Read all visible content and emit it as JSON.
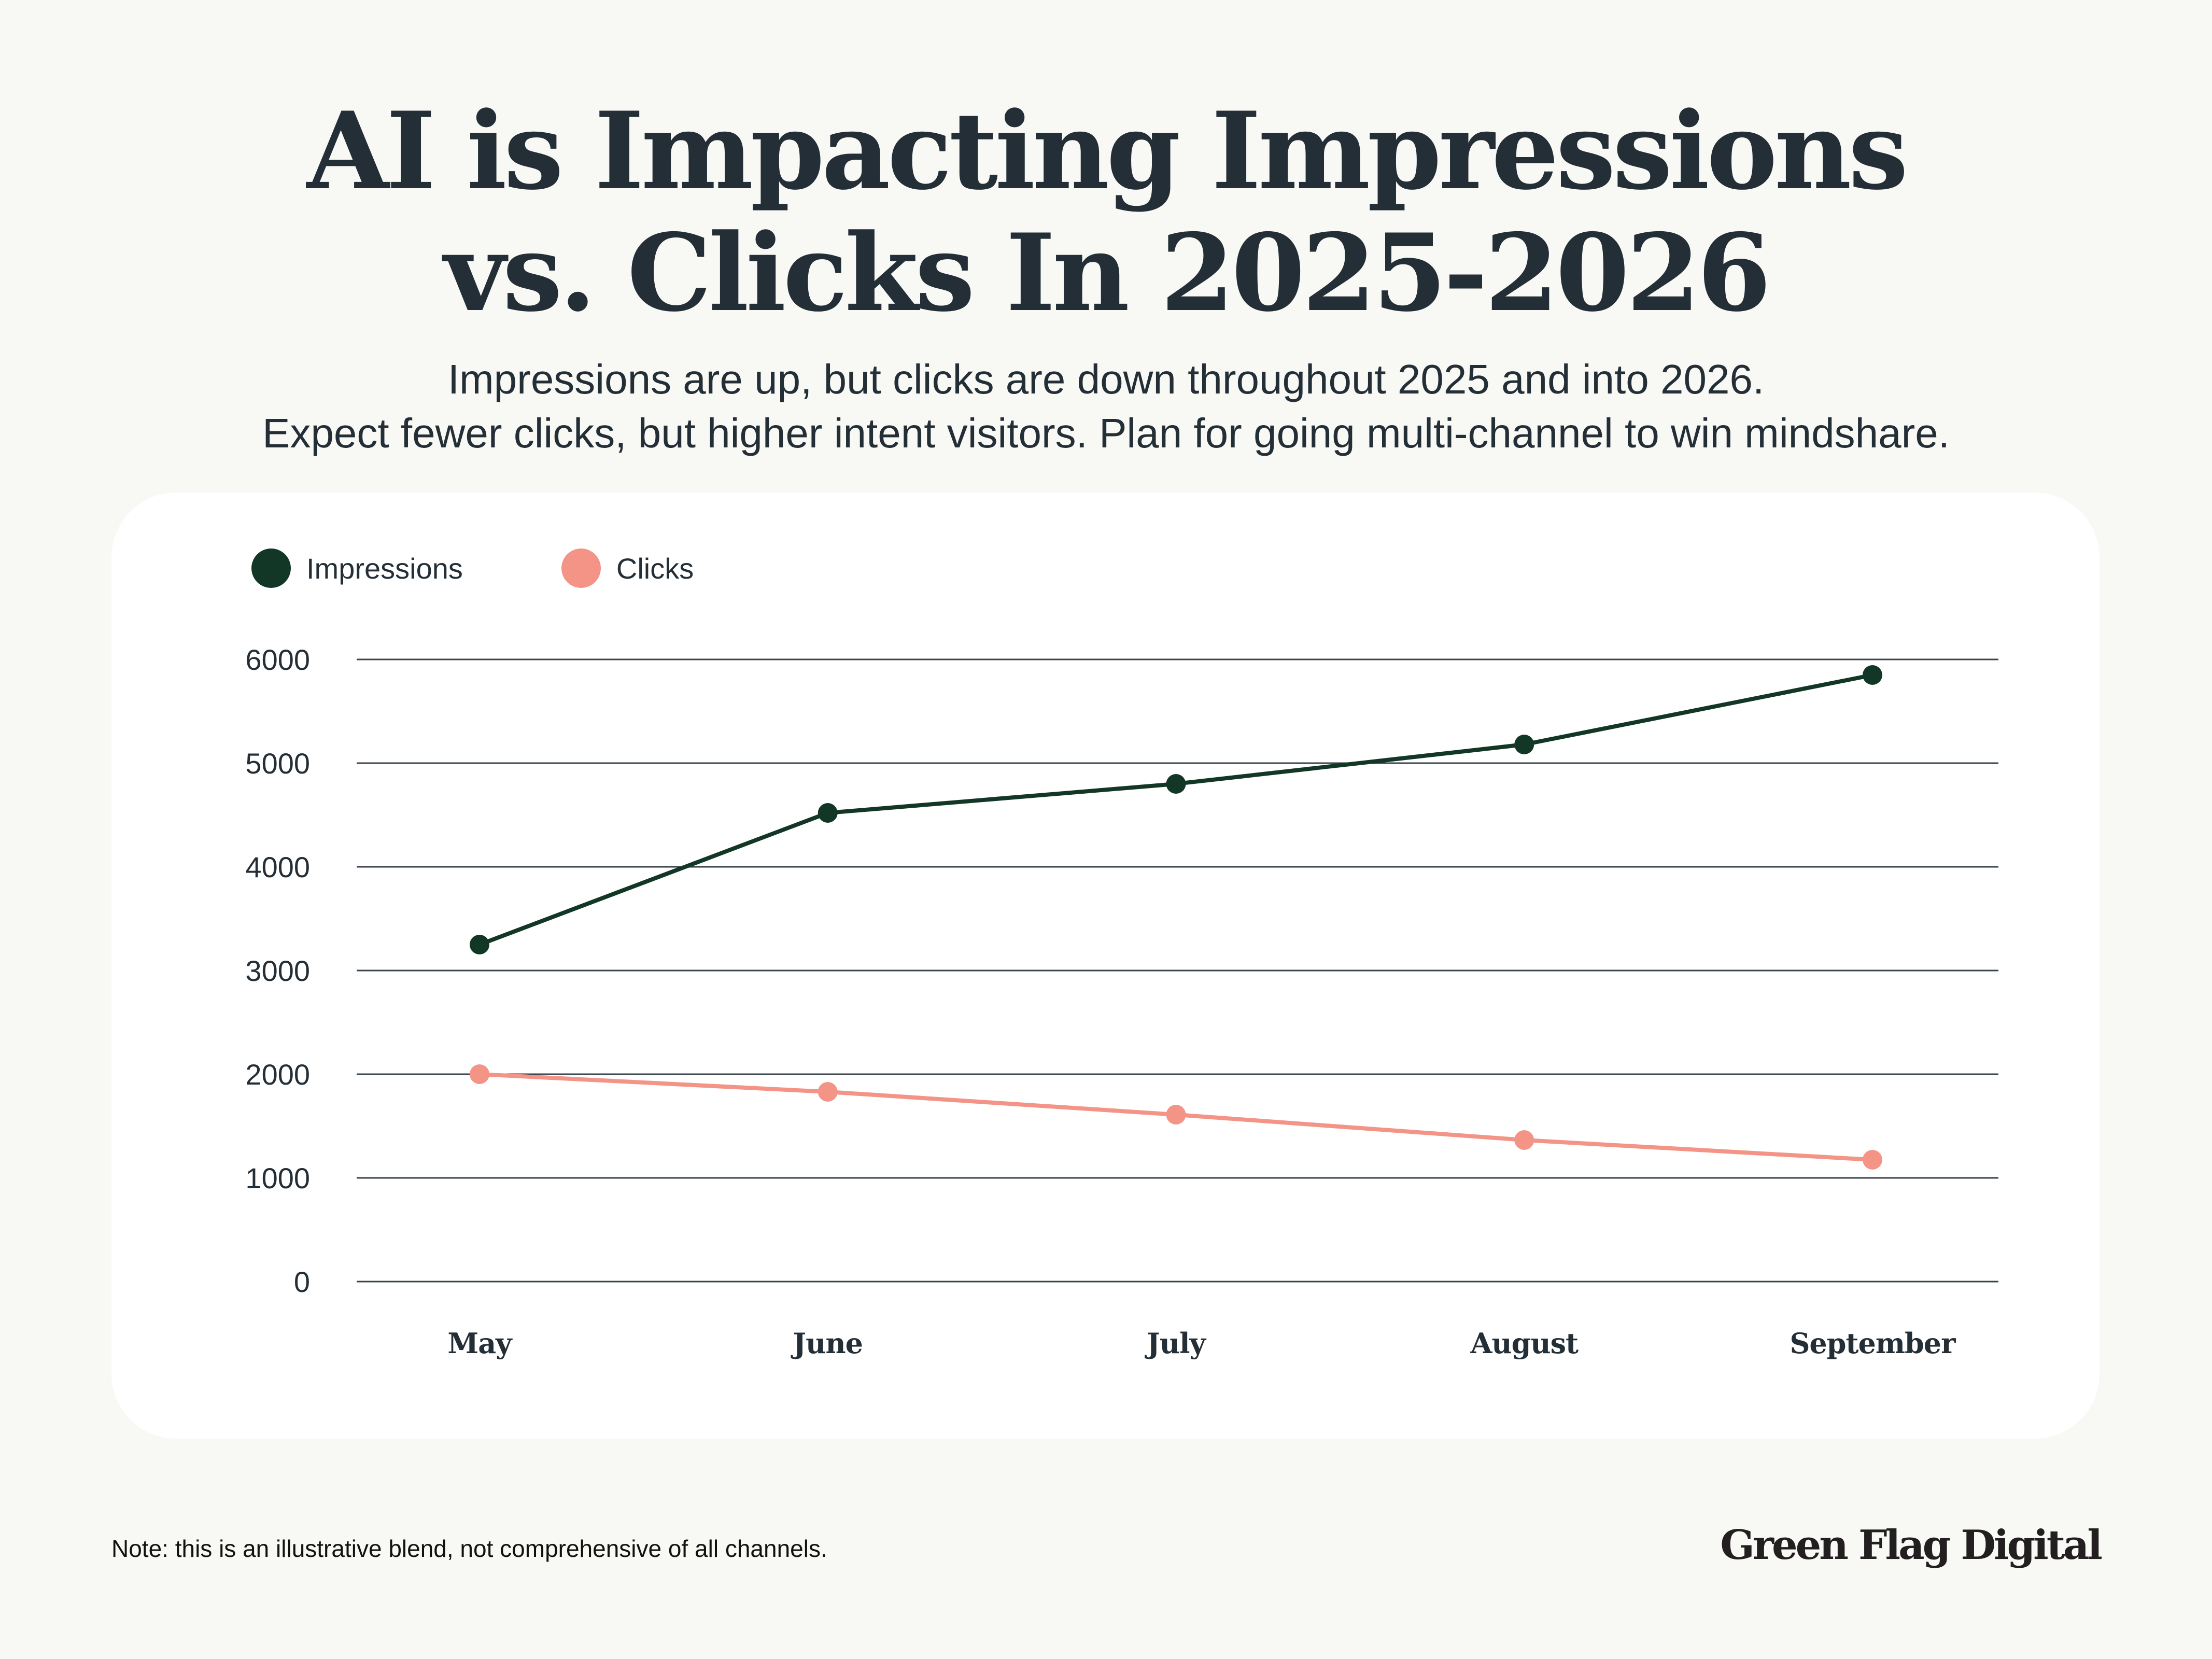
{
  "header": {
    "title_lines": [
      "AI is Impacting Impressions",
      "vs. Clicks In 2025-2026"
    ],
    "subtitle_lines": [
      "Impressions are up, but clicks are down throughout 2025 and into 2026.",
      "Expect fewer clicks, but higher intent visitors. Plan for going multi-channel to win mindshare."
    ]
  },
  "footer": {
    "note": "Note: this is an illustrative blend, not comprehensive of all channels.",
    "brand": "Green Flag Digital"
  },
  "colors": {
    "background": "#f8f8f4",
    "card": "#ffffff",
    "text": "#232e36",
    "grid": "#3a444c",
    "impressions": "#133726",
    "clicks": "#f39487"
  },
  "chart_data": {
    "type": "line",
    "title": "AI is Impacting Impressions vs. Clicks In 2025-2026",
    "xlabel": "",
    "ylabel": "",
    "categories": [
      "May",
      "June",
      "July",
      "August",
      "September"
    ],
    "series": [
      {
        "name": "Impressions",
        "color": "#133726",
        "values": [
          3250,
          4520,
          4800,
          5180,
          5850
        ]
      },
      {
        "name": "Clicks",
        "color": "#f39487",
        "values": [
          2000,
          1830,
          1610,
          1365,
          1175
        ]
      }
    ],
    "ylim": [
      0,
      6000
    ],
    "yticks": [
      0,
      1000,
      2000,
      3000,
      4000,
      5000,
      6000
    ],
    "grid": true,
    "legend": "top-left",
    "markers": true
  }
}
